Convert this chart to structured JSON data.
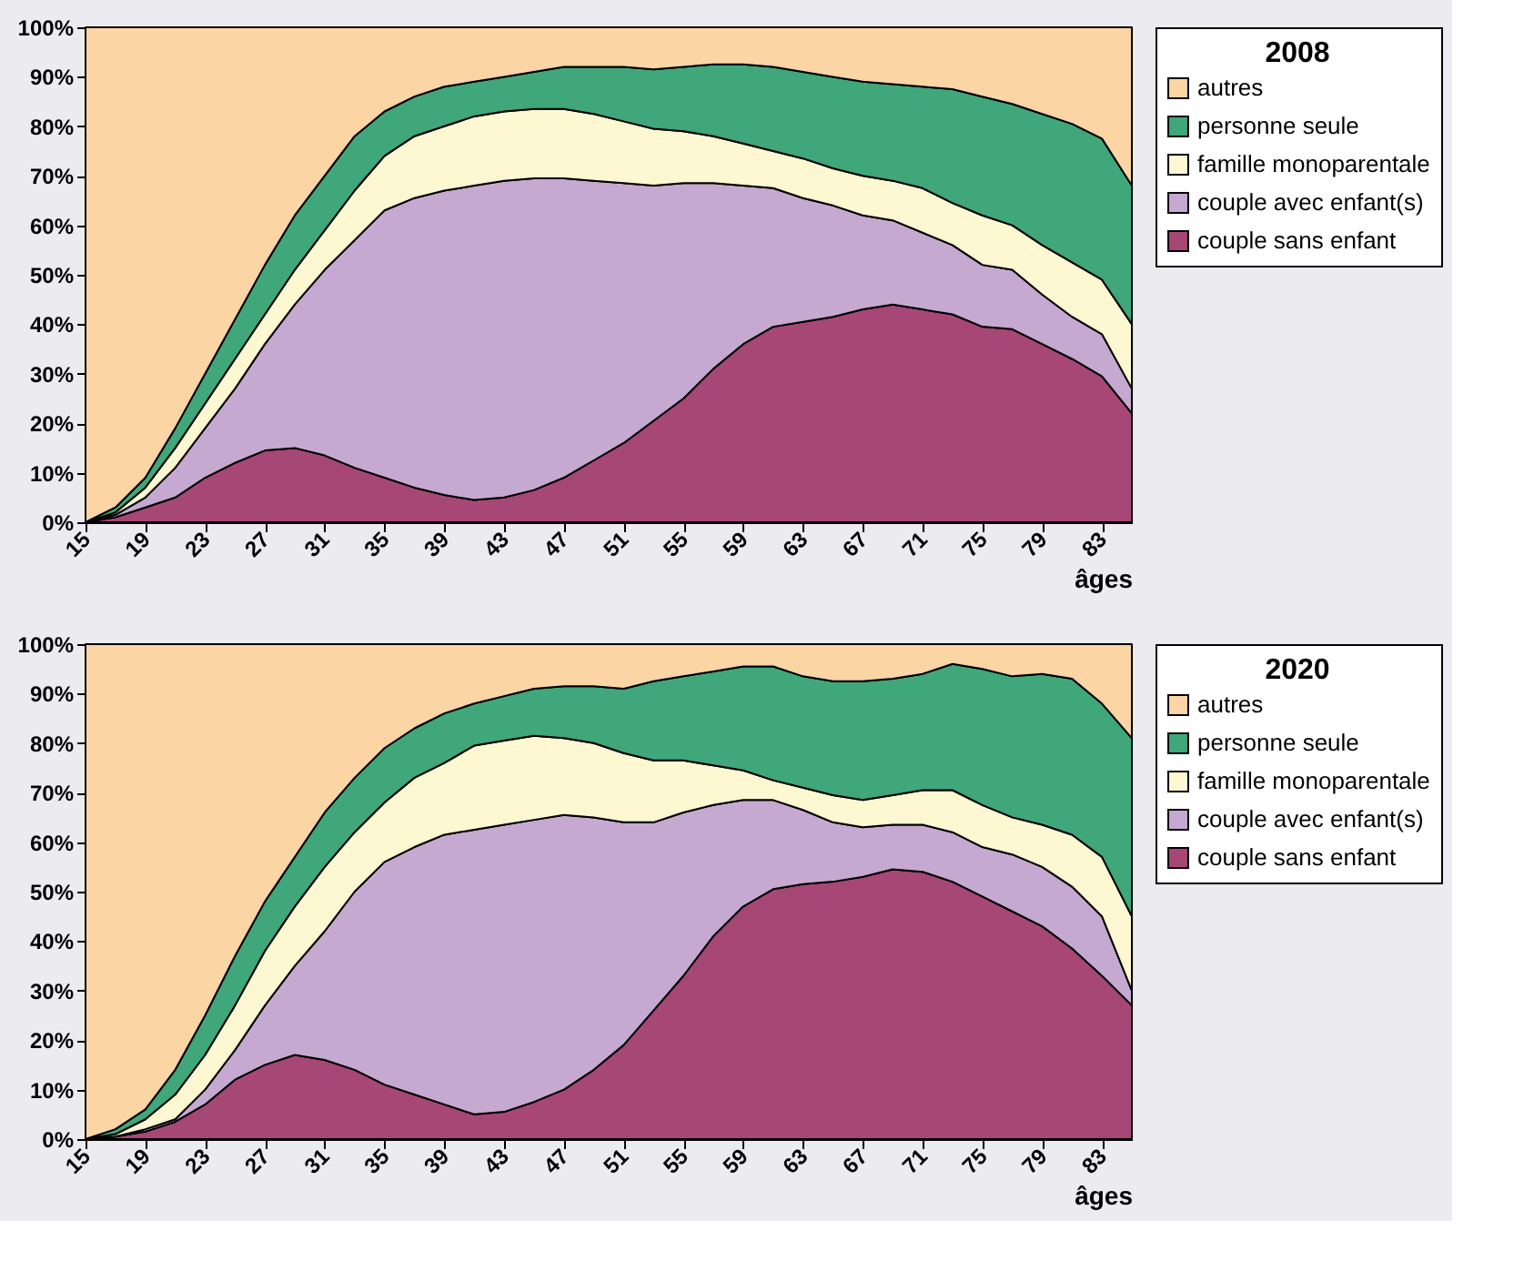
{
  "chart_data": [
    {
      "type": "area",
      "stacked": true,
      "legend_title": "2008",
      "xlabel": "âges",
      "legend": "right",
      "x": [
        15,
        17,
        19,
        21,
        23,
        25,
        27,
        29,
        31,
        33,
        35,
        37,
        39,
        41,
        43,
        45,
        47,
        49,
        51,
        53,
        55,
        57,
        59,
        61,
        63,
        65,
        67,
        69,
        71,
        73,
        75,
        77,
        79,
        81,
        83,
        85
      ],
      "xlim": [
        15,
        85
      ],
      "xticks": [
        15,
        19,
        23,
        27,
        31,
        35,
        39,
        43,
        47,
        51,
        55,
        59,
        63,
        67,
        71,
        75,
        79,
        83
      ],
      "ylim": [
        0,
        100
      ],
      "yticks": [
        {
          "value": 0,
          "label": "0%"
        },
        {
          "value": 10,
          "label": "10%"
        },
        {
          "value": 20,
          "label": "20%"
        },
        {
          "value": 30,
          "label": "30%"
        },
        {
          "value": 40,
          "label": "40%"
        },
        {
          "value": 50,
          "label": "50%"
        },
        {
          "value": 60,
          "label": "60%"
        },
        {
          "value": 70,
          "label": "70%"
        },
        {
          "value": 80,
          "label": "80%"
        },
        {
          "value": 90,
          "label": "90%"
        },
        {
          "value": 100,
          "label": "100%"
        }
      ],
      "series": [
        {
          "name": "couple sans enfant",
          "color": "#a64775",
          "values": [
            0,
            1,
            3,
            5,
            9,
            12,
            14.5,
            15,
            13.5,
            11,
            9,
            7,
            5.5,
            4.5,
            5,
            6.5,
            9,
            12.5,
            16,
            20.5,
            25,
            31,
            36,
            39.5,
            40.5,
            41.5,
            43,
            44,
            43,
            42,
            39.5,
            39,
            36,
            33,
            29.5,
            22
          ]
        },
        {
          "name": "couple avec enfant(s)",
          "color": "#c6a9d0",
          "values": [
            0,
            0.5,
            2,
            6,
            10,
            15,
            21.5,
            29,
            37.5,
            46,
            54,
            58.5,
            61.5,
            63.5,
            64,
            63,
            60.5,
            56.5,
            52.5,
            47.5,
            43.5,
            37.5,
            32,
            28,
            25,
            22.5,
            19,
            17,
            15.5,
            14,
            12.5,
            12,
            10,
            8.5,
            8.5,
            5
          ]
        },
        {
          "name": "famille monoparentale",
          "color": "#fdf7d2",
          "values": [
            0,
            0.5,
            2,
            4,
            5,
            6,
            6,
            7,
            8,
            10,
            11,
            12.5,
            13,
            14,
            14,
            14,
            14,
            13.5,
            12.5,
            11.5,
            10.5,
            9.5,
            8.5,
            7.5,
            8,
            7.5,
            8,
            8,
            9,
            8.5,
            10,
            9,
            10,
            11,
            11,
            13
          ]
        },
        {
          "name": "personne seule",
          "color": "#3fa77a",
          "values": [
            0,
            1,
            2,
            4,
            6,
            8,
            10,
            11,
            11,
            11,
            9,
            8,
            8,
            7,
            7,
            7.5,
            8.5,
            9.5,
            11,
            12,
            13,
            14.5,
            16,
            17,
            17.5,
            18.5,
            19,
            19.5,
            20.5,
            23,
            24,
            24.5,
            26.5,
            28,
            28.5,
            28
          ]
        },
        {
          "name": "autres",
          "color": "#fcd5a5",
          "values": [
            100,
            97,
            91,
            81,
            70,
            59,
            48,
            38,
            30,
            22,
            17,
            14,
            12,
            11,
            10,
            9,
            8,
            8,
            8,
            8.5,
            8,
            7.5,
            7.5,
            8,
            9,
            10,
            11,
            11.5,
            12,
            12.5,
            14,
            15.5,
            17.5,
            19.5,
            22.5,
            32
          ]
        }
      ]
    },
    {
      "type": "area",
      "stacked": true,
      "legend_title": "2020",
      "xlabel": "âges",
      "legend": "right",
      "x": [
        15,
        17,
        19,
        21,
        23,
        25,
        27,
        29,
        31,
        33,
        35,
        37,
        39,
        41,
        43,
        45,
        47,
        49,
        51,
        53,
        55,
        57,
        59,
        61,
        63,
        65,
        67,
        69,
        71,
        73,
        75,
        77,
        79,
        81,
        83,
        85
      ],
      "xlim": [
        15,
        85
      ],
      "xticks": [
        15,
        19,
        23,
        27,
        31,
        35,
        39,
        43,
        47,
        51,
        55,
        59,
        63,
        67,
        71,
        75,
        79,
        83
      ],
      "ylim": [
        0,
        100
      ],
      "yticks": [
        {
          "value": 0,
          "label": "0%"
        },
        {
          "value": 10,
          "label": "10%"
        },
        {
          "value": 20,
          "label": "20%"
        },
        {
          "value": 30,
          "label": "30%"
        },
        {
          "value": 40,
          "label": "40%"
        },
        {
          "value": 50,
          "label": "50%"
        },
        {
          "value": 60,
          "label": "60%"
        },
        {
          "value": 70,
          "label": "70%"
        },
        {
          "value": 80,
          "label": "80%"
        },
        {
          "value": 90,
          "label": "90%"
        },
        {
          "value": 100,
          "label": "100%"
        }
      ],
      "series": [
        {
          "name": "couple sans enfant",
          "color": "#a64775",
          "values": [
            0,
            0.5,
            1.5,
            3.5,
            7,
            12,
            15,
            17,
            16,
            14,
            11,
            9,
            7,
            5,
            5.5,
            7.5,
            10,
            14,
            19,
            26,
            33,
            41,
            47,
            50.5,
            51.5,
            52,
            53,
            54.5,
            54,
            52,
            49,
            46,
            43,
            38.5,
            33,
            27
          ]
        },
        {
          "name": "couple avec enfant(s)",
          "color": "#c6a9d0",
          "values": [
            0,
            0,
            0.5,
            0.5,
            3,
            6,
            12,
            18,
            26,
            36,
            45,
            50,
            54.5,
            57.5,
            58,
            57,
            55.5,
            51,
            45,
            38,
            33,
            26.5,
            21.5,
            18,
            15,
            12,
            10,
            9,
            9.5,
            10,
            10,
            11.5,
            12,
            12.5,
            12,
            3
          ]
        },
        {
          "name": "famille monoparentale",
          "color": "#fdf7d2",
          "values": [
            0,
            0.5,
            2,
            5,
            7,
            9,
            11,
            12,
            13,
            12,
            12,
            14,
            14.5,
            17,
            17,
            17,
            15.5,
            15,
            14,
            12.5,
            10.5,
            8,
            6,
            4,
            4.5,
            5.5,
            5.5,
            6,
            7,
            8.5,
            8.5,
            7.5,
            8.5,
            10.5,
            12,
            15
          ]
        },
        {
          "name": "personne seule",
          "color": "#3fa77a",
          "values": [
            0,
            1,
            2,
            5,
            8,
            10,
            10,
            10,
            11,
            11,
            11,
            10,
            10,
            8.5,
            9,
            9.5,
            10.5,
            11.5,
            13,
            16,
            17,
            19,
            21,
            23,
            22.5,
            23,
            24,
            23.5,
            23.5,
            25.5,
            27.5,
            28.5,
            30.5,
            31.5,
            31,
            36
          ]
        },
        {
          "name": "autres",
          "color": "#fcd5a5",
          "values": [
            100,
            98,
            94,
            86,
            75,
            63,
            52,
            43,
            34,
            27,
            21,
            17,
            14,
            12,
            10.5,
            9,
            8.5,
            8.5,
            9,
            7.5,
            6.5,
            5.5,
            4.5,
            4.5,
            6.5,
            7.5,
            7.5,
            7,
            6,
            4,
            5,
            6.5,
            6,
            7,
            12,
            19
          ]
        }
      ]
    }
  ]
}
